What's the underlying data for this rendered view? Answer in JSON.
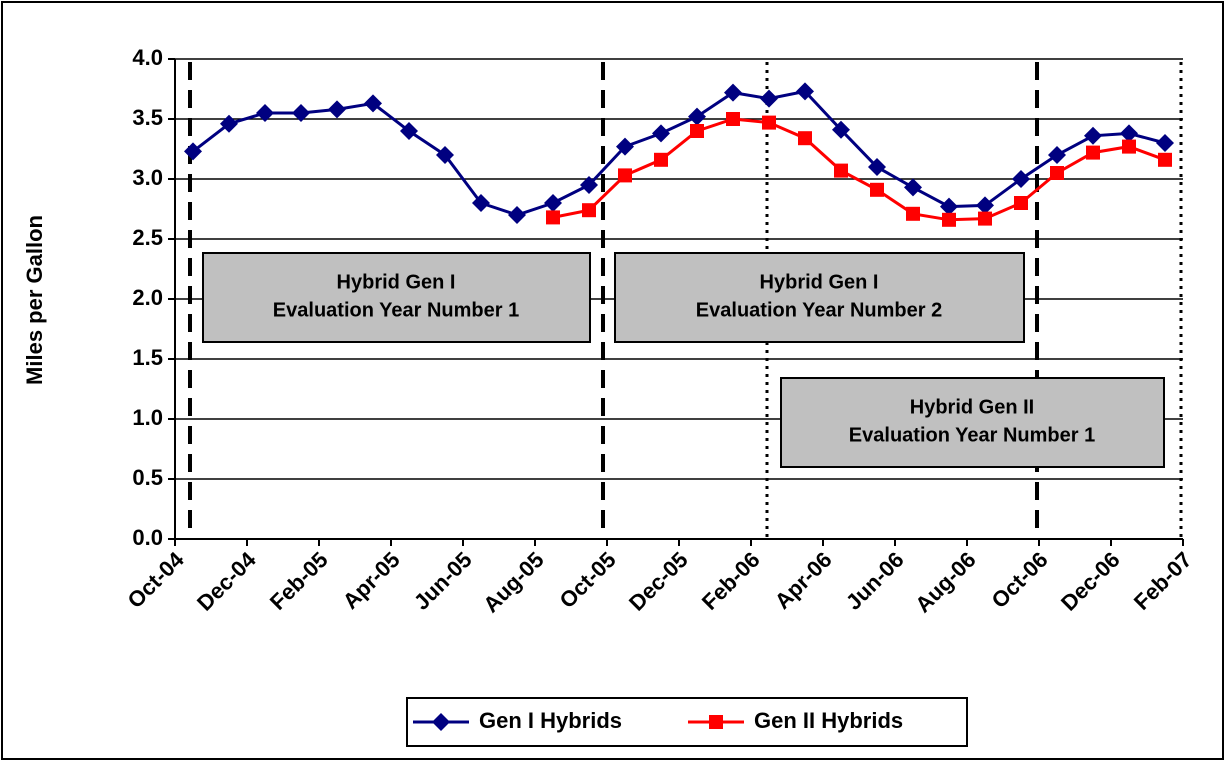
{
  "chart_data": {
    "type": "line",
    "y_label": "Miles per Gallon",
    "categories": [
      "Oct-04",
      null,
      "Dec-04",
      null,
      "Feb-05",
      null,
      "Apr-05",
      null,
      "Jun-05",
      null,
      "Aug-05",
      null,
      "Oct-05",
      null,
      "Dec-05",
      null,
      "Feb-06",
      null,
      "Apr-06",
      null,
      "Jun-06",
      null,
      "Aug-06",
      null,
      "Oct-06",
      null,
      "Dec-06",
      null,
      "Feb-07"
    ],
    "series": [
      {
        "name": "Gen I Hybrids",
        "color": "#000080",
        "marker": "diamond",
        "values": [
          3.23,
          3.46,
          3.55,
          3.55,
          3.58,
          3.63,
          3.4,
          3.2,
          2.8,
          2.7,
          2.8,
          2.95,
          3.27,
          3.38,
          3.52,
          3.72,
          3.67,
          3.73,
          3.41,
          3.1,
          2.93,
          2.77,
          2.78,
          3.0,
          3.2,
          3.36,
          3.38,
          3.3,
          null
        ]
      },
      {
        "name": "Gen II Hybrids",
        "color": "#ff0000",
        "marker": "square",
        "values": [
          null,
          null,
          null,
          null,
          null,
          null,
          null,
          null,
          null,
          null,
          2.68,
          2.74,
          3.03,
          3.16,
          3.4,
          3.5,
          3.47,
          3.34,
          3.07,
          2.91,
          2.71,
          2.66,
          2.67,
          2.8,
          3.05,
          3.22,
          3.27,
          3.16,
          null
        ]
      }
    ],
    "ylim": [
      0,
      4
    ],
    "yticks": [
      {
        "value": 0,
        "label": "0.0"
      },
      0.5,
      {
        "value": 1,
        "label": "1.0"
      },
      1.5,
      {
        "value": 2,
        "label": "2.0"
      },
      2.5,
      {
        "value": 3,
        "label": "3.0"
      },
      3.5,
      {
        "value": 4,
        "label": "4.0"
      }
    ],
    "grid": true,
    "legend": "bottom",
    "annotations": [
      [
        "Hybrid Gen I",
        "Evaluation Year Number 1"
      ],
      [
        "Hybrid Gen I",
        "Evaluation Year Number 2"
      ],
      [
        "Hybrid Gen II",
        "Evaluation Year Number 1"
      ]
    ]
  }
}
